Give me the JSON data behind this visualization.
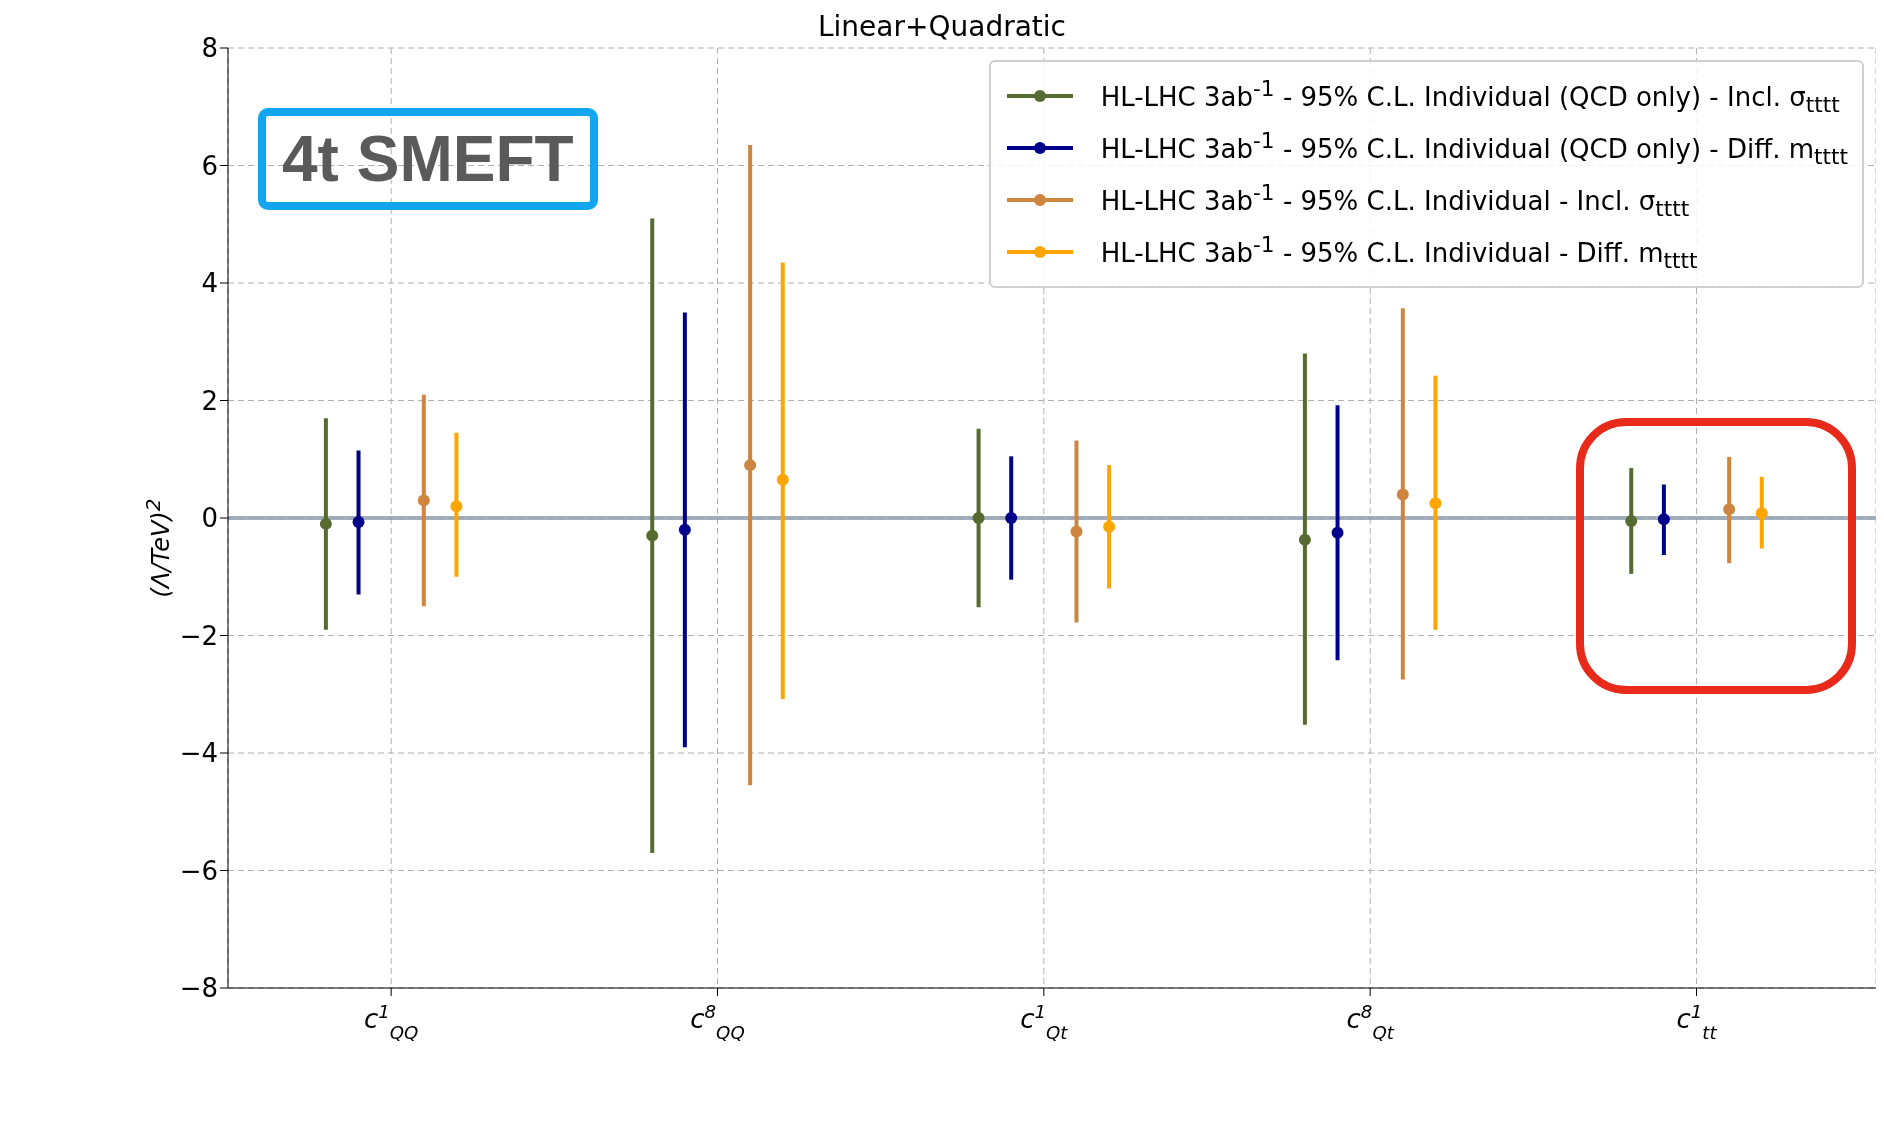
{
  "chart_data": {
    "type": "scatter",
    "title": "Linear+Quadratic",
    "ylabel": "(Λ/TeV)$^{2}$",
    "categories": [
      "c$^{1}$$_{QQ}$",
      "c$^{8}$$_{QQ}$",
      "c$^{1}$$_{Qt}$",
      "c$^{8}$$_{Qt}$",
      "c$^{1}$$_{tt}$"
    ],
    "series": [
      {
        "name": "HL-LHC 3ab$^{-1}$ - 95% C.L. Individual (QCD only) - Incl. σ$_{tttt}$",
        "color": "#556b2f",
        "values": [
          -0.1,
          -0.3,
          0,
          -0.37,
          -0.05
        ],
        "errors": [
          [
            -1.9,
            1.7
          ],
          [
            -5.7,
            5.1
          ],
          [
            -1.52,
            1.52
          ],
          [
            -3.52,
            2.8
          ],
          [
            -0.95,
            0.85
          ]
        ]
      },
      {
        "name": "HL-LHC 3ab$^{-1}$ - 95% C.L. Individual (QCD only) - Diff. m$_{tttt}$",
        "color": "#00008b",
        "values": [
          -0.07,
          -0.2,
          0,
          -0.25,
          -0.02
        ],
        "errors": [
          [
            -1.3,
            1.15
          ],
          [
            -3.9,
            3.5
          ],
          [
            -1.05,
            1.05
          ],
          [
            -2.42,
            1.92
          ],
          [
            -0.63,
            0.57
          ]
        ]
      },
      {
        "name": "HL-LHC 3ab$^{-1}$ - 95% C.L. Individual - Incl. σ$_{tttt}$",
        "color": "#cd853f",
        "values": [
          0.3,
          0.9,
          -0.23,
          0.4,
          0.15
        ],
        "errors": [
          [
            -1.5,
            2.1
          ],
          [
            -4.55,
            6.35
          ],
          [
            -1.78,
            1.32
          ],
          [
            -2.75,
            3.57
          ],
          [
            -0.77,
            1.04
          ]
        ]
      },
      {
        "name": "HL-LHC 3ab$^{-1}$ - 95% C.L. Individual - Diff. m$_{tttt}$",
        "color": "#ffa500",
        "values": [
          0.2,
          0.65,
          -0.15,
          0.25,
          0.08
        ],
        "errors": [
          [
            -1.0,
            1.45
          ],
          [
            -3.08,
            4.35
          ],
          [
            -1.2,
            0.9
          ],
          [
            -1.9,
            2.42
          ],
          [
            -0.52,
            0.7
          ]
        ]
      }
    ],
    "ylim": [
      -8,
      8
    ],
    "yticks": [
      -8,
      -6,
      -4,
      -2,
      0,
      2,
      4,
      6,
      8
    ],
    "grid": true,
    "legend": "top right",
    "marker": "circle",
    "ref_lines": [
      {
        "axis": "y",
        "value": 0,
        "color": "#8c9bad"
      }
    ],
    "annotations": [
      "4t SMEFT"
    ]
  }
}
